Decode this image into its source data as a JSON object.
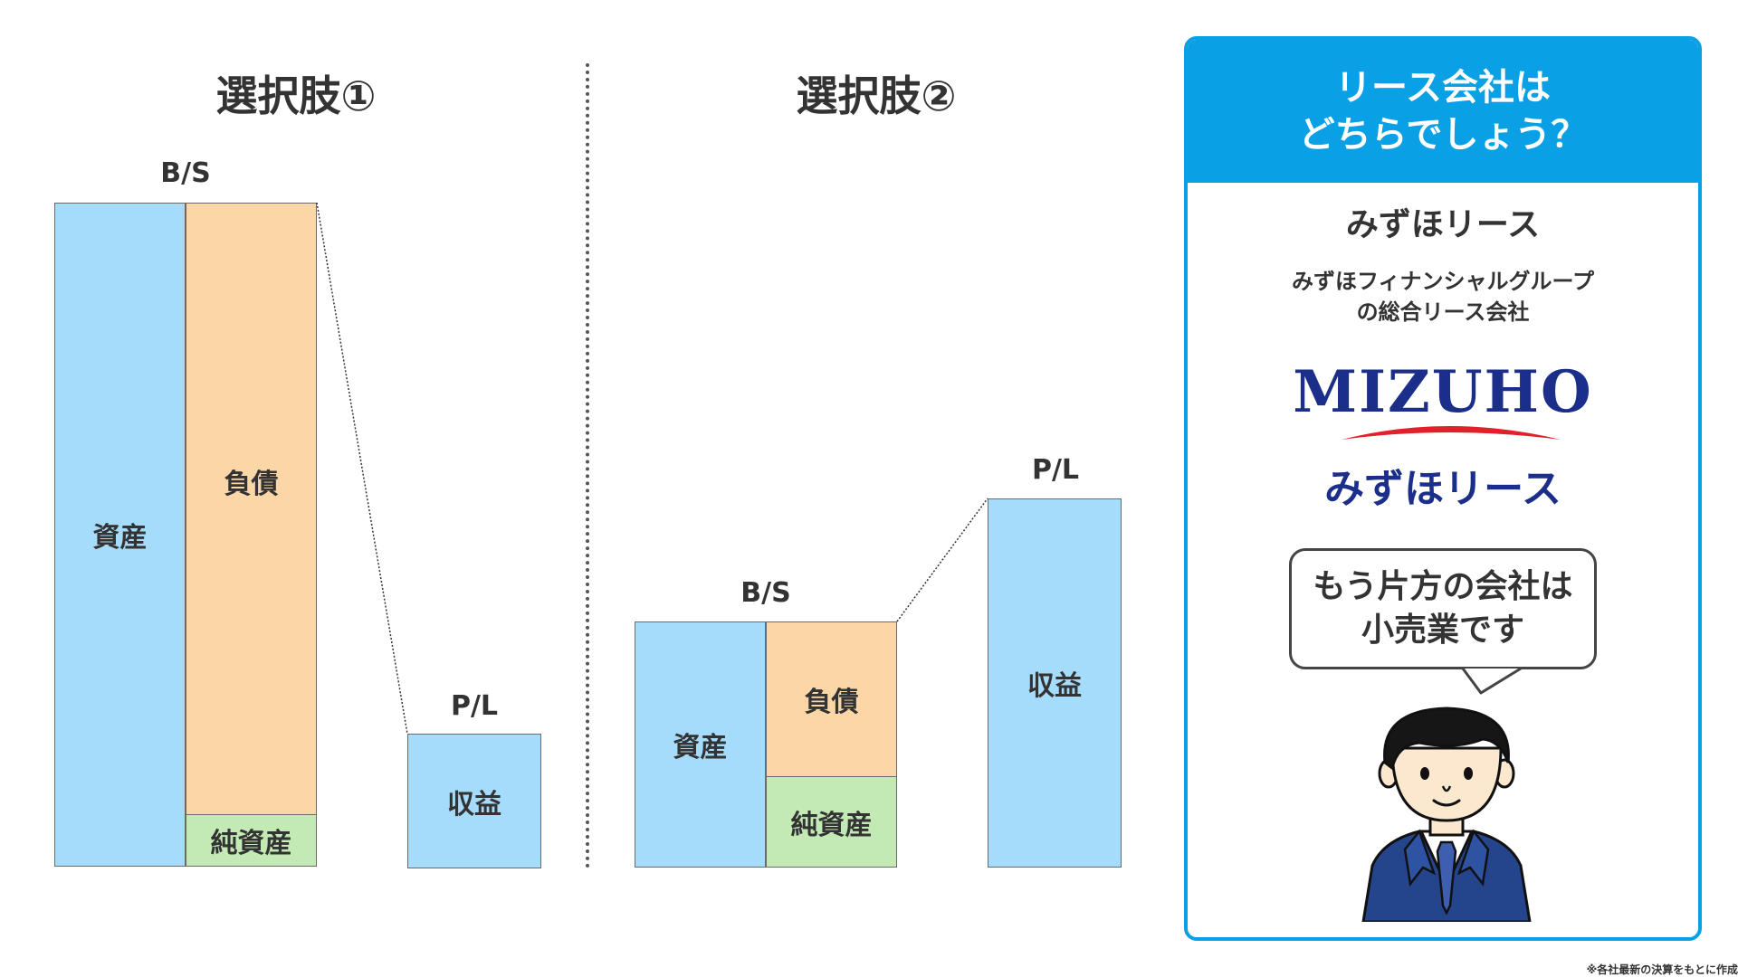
{
  "option1": {
    "title": "選択肢①",
    "bs_label": "B/S",
    "pl_label": "P/L",
    "assets": "資産",
    "liabilities": "負債",
    "net_assets": "純資産",
    "revenue": "収益"
  },
  "option2": {
    "title": "選択肢②",
    "bs_label": "B/S",
    "pl_label": "P/L",
    "assets": "資産",
    "liabilities": "負債",
    "net_assets": "純資産",
    "revenue": "収益"
  },
  "panel": {
    "header_line1": "リース会社は",
    "header_line2": "どちらでしょう？",
    "company_name": "みずほリース",
    "desc_line1": "みずほフィナンシャルグループ",
    "desc_line2": "の総合リース会社",
    "logo_word": "MIZUHO",
    "logo_sub": "みずほリース",
    "bubble_line1": "もう片方の会社は",
    "bubble_line2": "小売業です"
  },
  "footnote": "※各社最新の決算をもとに作成",
  "colors": {
    "assets": "#a6dcfb",
    "liabilities": "#fbd7a8",
    "net_assets": "#c3e9b5",
    "revenue": "#a6dcfb",
    "accent": "#0aa0e6",
    "logo": "#1b2f8a",
    "suit": "#24448c"
  }
}
